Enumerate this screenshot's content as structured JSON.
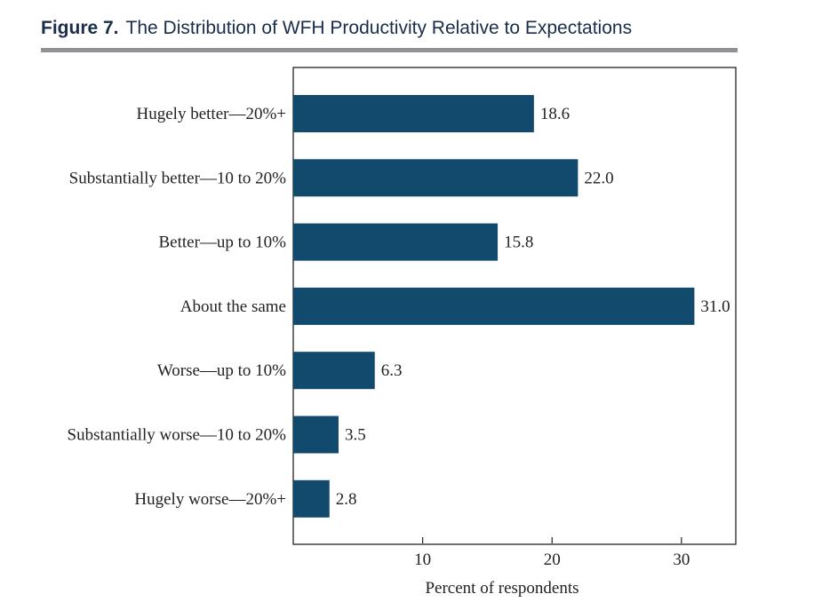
{
  "figure": {
    "number": "Figure 7.",
    "title": "The Distribution of WFH Productivity Relative to Expectations"
  },
  "colors": {
    "bar": "#124a6e",
    "title_text": "#1a2d4a",
    "rule": "#8f9194",
    "axis": "#222222"
  },
  "chart_data": {
    "type": "bar",
    "orientation": "horizontal",
    "title": "The Distribution of WFH Productivity Relative to Expectations",
    "xlabel": "Percent of respondents",
    "ylabel": "",
    "categories": [
      "Hugely better—20%+",
      "Substantially better—10 to 20%",
      "Better—up to 10%",
      "About the same",
      "Worse—up to 10%",
      "Substantially worse—10 to 20%",
      "Hugely worse—20%+"
    ],
    "values": [
      18.6,
      22.0,
      15.8,
      31.0,
      6.3,
      3.5,
      2.8
    ],
    "value_labels": [
      "18.6",
      "22.0",
      "15.8",
      "31.0",
      "6.3",
      "3.5",
      "2.8"
    ],
    "xlim": [
      0,
      34.2
    ],
    "xticks": [
      10,
      20,
      30
    ],
    "xtick_labels": [
      "10",
      "20",
      "30"
    ],
    "grid": false,
    "legend": "none"
  }
}
